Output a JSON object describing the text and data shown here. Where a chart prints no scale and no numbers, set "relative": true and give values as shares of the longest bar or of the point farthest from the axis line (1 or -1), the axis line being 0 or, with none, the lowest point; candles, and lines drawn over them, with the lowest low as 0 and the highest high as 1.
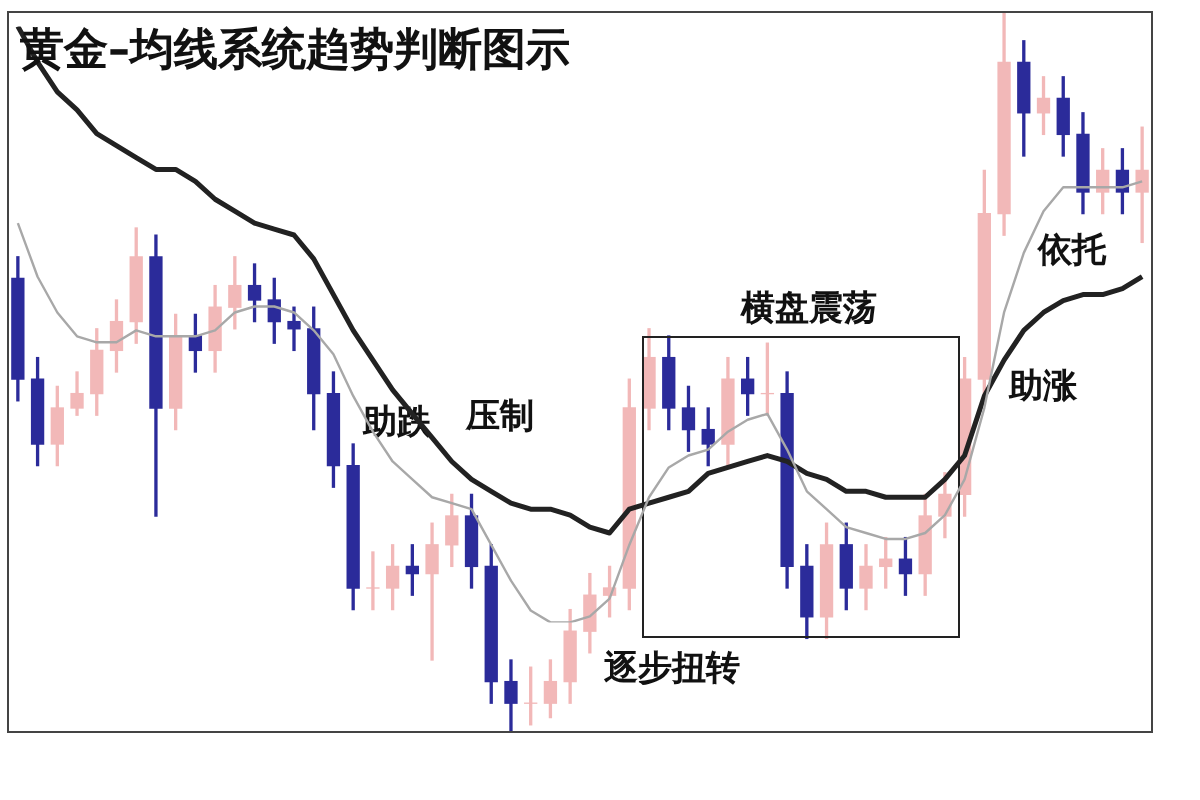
{
  "chart_data": [
    {
      "type": "candlestick",
      "title": "黄金–均线系统趋势判断图示",
      "relative": true,
      "legend": false,
      "categories": [
        null,
        null,
        null,
        null,
        null,
        null,
        null,
        null,
        null,
        null,
        null,
        null,
        null,
        null,
        null,
        null,
        null,
        null,
        null,
        null,
        null,
        null,
        null,
        null,
        null,
        null,
        null,
        null,
        null,
        null,
        null,
        null,
        null,
        null,
        null,
        null,
        null,
        null,
        null,
        null,
        null,
        null,
        null,
        null,
        null,
        null,
        null,
        null,
        null,
        null,
        null,
        null,
        null,
        null,
        null,
        null,
        null,
        null
      ],
      "ohlc": [
        [
          0.63,
          0.66,
          0.46,
          0.49
        ],
        [
          0.49,
          0.52,
          0.37,
          0.4
        ],
        [
          0.4,
          0.48,
          0.37,
          0.45
        ],
        [
          0.45,
          0.5,
          0.44,
          0.47
        ],
        [
          0.47,
          0.56,
          0.44,
          0.53
        ],
        [
          0.53,
          0.6,
          0.5,
          0.57
        ],
        [
          0.57,
          0.7,
          0.54,
          0.66
        ],
        [
          0.66,
          0.69,
          0.3,
          0.45
        ],
        [
          0.45,
          0.58,
          0.42,
          0.55
        ],
        [
          0.55,
          0.58,
          0.5,
          0.53
        ],
        [
          0.53,
          0.62,
          0.5,
          0.59
        ],
        [
          0.59,
          0.66,
          0.56,
          0.62
        ],
        [
          0.62,
          0.65,
          0.57,
          0.6
        ],
        [
          0.6,
          0.63,
          0.54,
          0.57
        ],
        [
          0.57,
          0.59,
          0.53,
          0.56
        ],
        [
          0.56,
          0.59,
          0.42,
          0.47
        ],
        [
          0.47,
          0.5,
          0.34,
          0.37
        ],
        [
          0.37,
          0.4,
          0.17,
          0.2
        ],
        [
          0.2,
          0.25,
          0.17,
          0.2
        ],
        [
          0.2,
          0.26,
          0.17,
          0.23
        ],
        [
          0.23,
          0.26,
          0.19,
          0.22
        ],
        [
          0.22,
          0.29,
          0.1,
          0.26
        ],
        [
          0.26,
          0.33,
          0.23,
          0.3
        ],
        [
          0.3,
          0.33,
          0.2,
          0.23
        ],
        [
          0.23,
          0.26,
          0.04,
          0.07
        ],
        [
          0.07,
          0.1,
          0.0,
          0.04
        ],
        [
          0.04,
          0.09,
          0.01,
          0.04
        ],
        [
          0.04,
          0.1,
          0.02,
          0.07
        ],
        [
          0.07,
          0.17,
          0.04,
          0.14
        ],
        [
          0.14,
          0.22,
          0.11,
          0.19
        ],
        [
          0.19,
          0.23,
          0.16,
          0.2
        ],
        [
          0.2,
          0.49,
          0.17,
          0.45
        ],
        [
          0.45,
          0.56,
          0.42,
          0.52
        ],
        [
          0.52,
          0.55,
          0.42,
          0.45
        ],
        [
          0.45,
          0.48,
          0.39,
          0.42
        ],
        [
          0.42,
          0.45,
          0.37,
          0.4
        ],
        [
          0.4,
          0.52,
          0.37,
          0.49
        ],
        [
          0.49,
          0.52,
          0.44,
          0.47
        ],
        [
          0.47,
          0.54,
          0.44,
          0.47
        ],
        [
          0.47,
          0.5,
          0.2,
          0.23
        ],
        [
          0.23,
          0.26,
          0.13,
          0.16
        ],
        [
          0.16,
          0.29,
          0.13,
          0.26
        ],
        [
          0.26,
          0.29,
          0.17,
          0.2
        ],
        [
          0.2,
          0.26,
          0.17,
          0.23
        ],
        [
          0.23,
          0.27,
          0.2,
          0.24
        ],
        [
          0.24,
          0.27,
          0.19,
          0.22
        ],
        [
          0.22,
          0.33,
          0.19,
          0.3
        ],
        [
          0.3,
          0.36,
          0.27,
          0.33
        ],
        [
          0.33,
          0.52,
          0.3,
          0.49
        ],
        [
          0.49,
          0.78,
          0.46,
          0.72
        ],
        [
          0.72,
          1.0,
          0.69,
          0.93
        ],
        [
          0.93,
          0.96,
          0.8,
          0.86
        ],
        [
          0.86,
          0.91,
          0.83,
          0.88
        ],
        [
          0.88,
          0.91,
          0.8,
          0.83
        ],
        [
          0.83,
          0.86,
          0.72,
          0.75
        ],
        [
          0.75,
          0.81,
          0.72,
          0.78
        ],
        [
          0.78,
          0.81,
          0.72,
          0.75
        ],
        [
          0.75,
          0.84,
          0.68,
          0.78
        ]
      ],
      "colors": [
        "#2b2b9a",
        "#2b2b9a",
        "#f2b8b8",
        "#f2b8b8",
        "#f2b8b8",
        "#f2b8b8",
        "#f2b8b8",
        "#2b2b9a",
        "#f2b8b8",
        "#2b2b9a",
        "#f2b8b8",
        "#f2b8b8",
        "#2b2b9a",
        "#2b2b9a",
        "#2b2b9a",
        "#2b2b9a",
        "#2b2b9a",
        "#2b2b9a",
        "#f2b8b8",
        "#f2b8b8",
        "#2b2b9a",
        "#f2b8b8",
        "#f2b8b8",
        "#2b2b9a",
        "#2b2b9a",
        "#2b2b9a",
        "#f2b8b8",
        "#f2b8b8",
        "#f2b8b8",
        "#f2b8b8",
        "#f2b8b8",
        "#f2b8b8",
        "#f2b8b8",
        "#2b2b9a",
        "#2b2b9a",
        "#2b2b9a",
        "#f2b8b8",
        "#2b2b9a",
        "#f2b8b8",
        "#2b2b9a",
        "#2b2b9a",
        "#f2b8b8",
        "#2b2b9a",
        "#f2b8b8",
        "#f2b8b8",
        "#2b2b9a",
        "#f2b8b8",
        "#f2b8b8",
        "#f2b8b8",
        "#f2b8b8",
        "#f2b8b8",
        "#2b2b9a",
        "#f2b8b8",
        "#2b2b9a",
        "#2b2b9a",
        "#f2b8b8",
        "#2b2b9a",
        "#f2b8b8"
      ],
      "annotations": [
        "助跌",
        "压制",
        "逐步扭转",
        "横盘震荡",
        "助涨",
        "依托"
      ]
    },
    {
      "type": "line",
      "relative": true,
      "legend": false,
      "categories": [
        null,
        null,
        null,
        null,
        null,
        null,
        null,
        null,
        null,
        null,
        null,
        null,
        null,
        null,
        null,
        null,
        null,
        null,
        null,
        null,
        null,
        null,
        null,
        null,
        null,
        null,
        null,
        null,
        null,
        null,
        null,
        null,
        null,
        null,
        null,
        null,
        null,
        null,
        null,
        null,
        null,
        null,
        null,
        null,
        null,
        null,
        null,
        null,
        null,
        null,
        null,
        null,
        null,
        null,
        null,
        null,
        null,
        null
      ],
      "series": [
        {
          "color": "#a8a8a8",
          "values": [
            0.67,
            0.58,
            0.52,
            0.48,
            0.47,
            0.47,
            0.49,
            0.48,
            0.48,
            0.48,
            0.49,
            0.52,
            0.53,
            0.53,
            0.52,
            0.49,
            0.45,
            0.38,
            0.32,
            0.27,
            0.24,
            0.21,
            0.2,
            0.19,
            0.13,
            0.07,
            0.02,
            0.0,
            0.0,
            0.01,
            0.04,
            0.13,
            0.21,
            0.26,
            0.28,
            0.29,
            0.32,
            0.34,
            0.35,
            0.29,
            0.22,
            0.19,
            0.16,
            0.15,
            0.14,
            0.14,
            0.15,
            0.18,
            0.24,
            0.36,
            0.52,
            0.62,
            0.69,
            0.73,
            0.73,
            0.73,
            0.73,
            0.74
          ]
        },
        {
          "color": "#222222",
          "values": [
            1.0,
            0.94,
            0.89,
            0.86,
            0.82,
            0.8,
            0.78,
            0.76,
            0.76,
            0.74,
            0.71,
            0.69,
            0.67,
            0.66,
            0.65,
            0.61,
            0.55,
            0.49,
            0.44,
            0.39,
            0.35,
            0.31,
            0.27,
            0.24,
            0.22,
            0.2,
            0.19,
            0.19,
            0.18,
            0.16,
            0.15,
            0.19,
            0.2,
            0.21,
            0.22,
            0.25,
            0.26,
            0.27,
            0.28,
            0.27,
            0.25,
            0.24,
            0.22,
            0.22,
            0.21,
            0.21,
            0.21,
            0.24,
            0.28,
            0.38,
            0.44,
            0.49,
            0.52,
            0.54,
            0.55,
            0.55,
            0.56,
            0.58
          ]
        }
      ]
    }
  ]
}
